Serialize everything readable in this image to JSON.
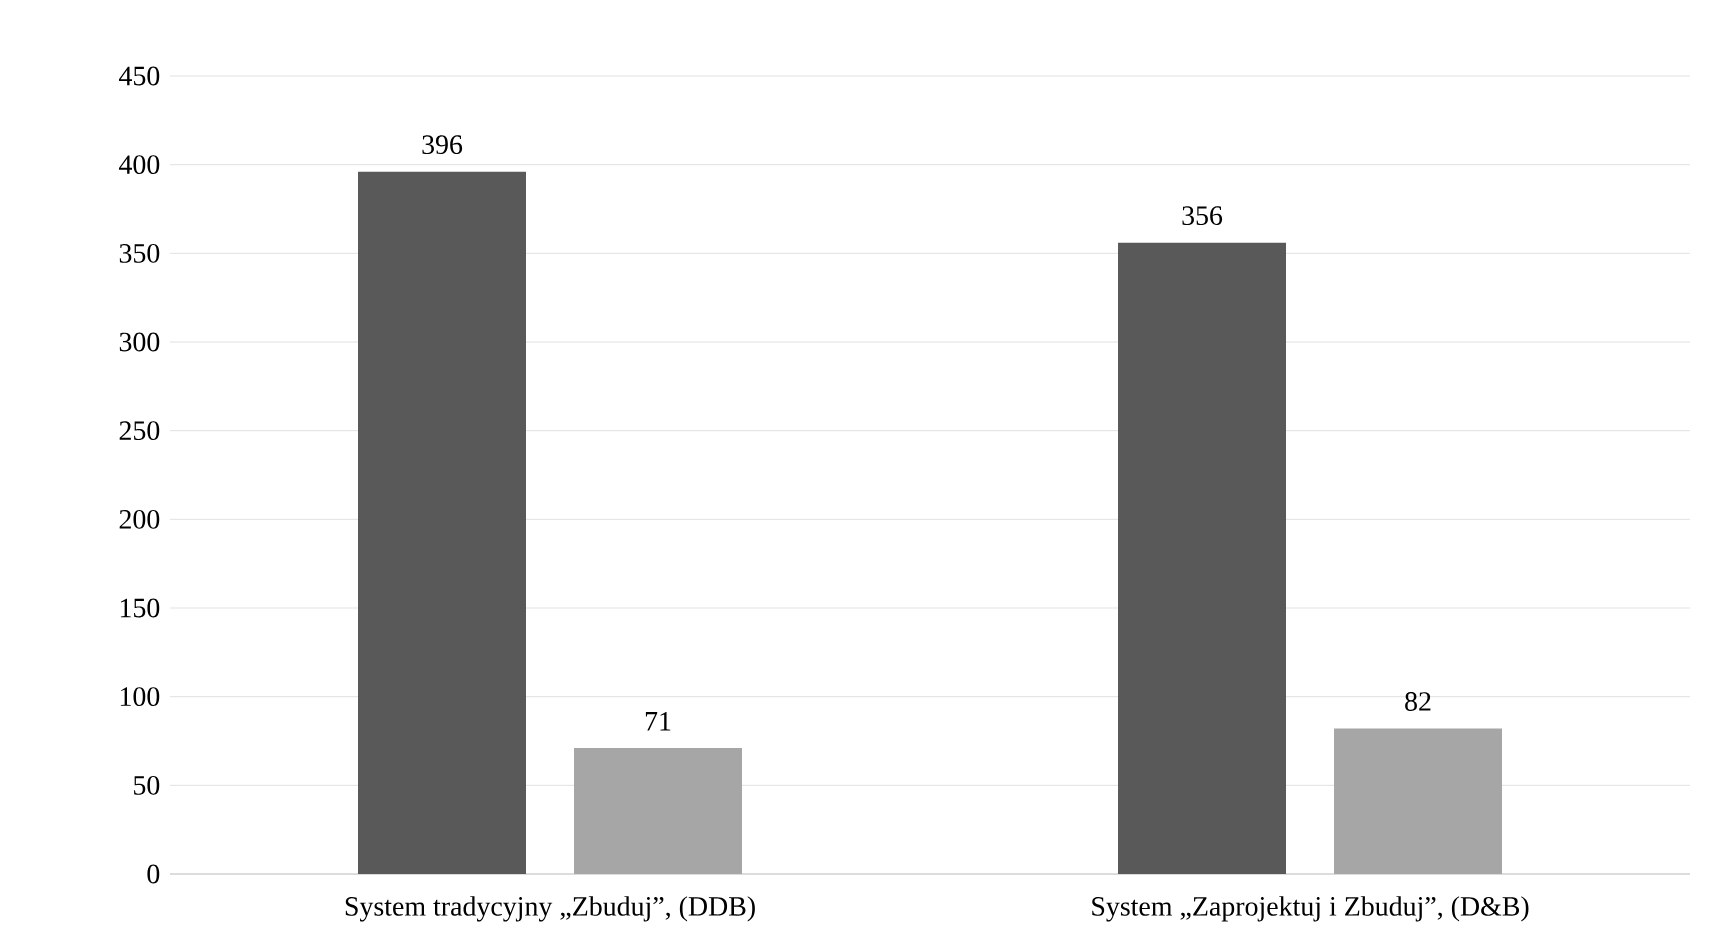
{
  "chart_data": {
    "type": "bar",
    "categories": [
      "System tradycyjny „Zbuduj”, (DDB)",
      "System „Zaprojektuj i Zbuduj”, (D&B)"
    ],
    "series": [
      {
        "color": "#595959",
        "values": [
          396,
          356
        ]
      },
      {
        "color": "#a6a6a6",
        "values": [
          71,
          82
        ]
      }
    ],
    "ylim": [
      0,
      450
    ],
    "yticks": [
      0,
      50,
      100,
      150,
      200,
      250,
      300,
      350,
      400,
      450
    ],
    "grid": "y",
    "data_labels": true
  }
}
